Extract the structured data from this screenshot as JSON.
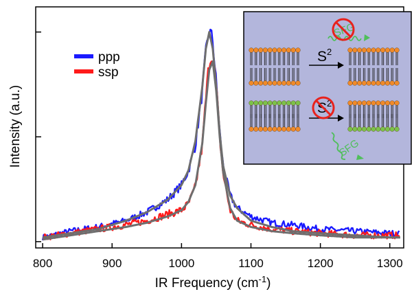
{
  "chart_data": {
    "type": "line",
    "title": "",
    "xlabel": "IR Frequency (cm",
    "xlabel_sup": "-1",
    "xlabel_close": ")",
    "ylabel": "Intensity (a.u.)",
    "xlim": [
      790,
      1320
    ],
    "ylim": [
      -0.03,
      1.12
    ],
    "x_ticks": [
      800,
      900,
      1000,
      1100,
      1200,
      1300
    ],
    "y_ticks_count": 3,
    "grid": false,
    "legend_position": "top-left",
    "series": [
      {
        "name": "ppp",
        "color": "#1a1aff",
        "x": [
          800,
          840,
          880,
          920,
          950,
          980,
          1000,
          1010,
          1020,
          1030,
          1035,
          1040,
          1045,
          1050,
          1055,
          1060,
          1070,
          1080,
          1100,
          1130,
          1160,
          1200,
          1250,
          1300,
          1315
        ],
        "y": [
          0.02,
          0.05,
          0.07,
          0.1,
          0.14,
          0.2,
          0.27,
          0.34,
          0.46,
          0.72,
          0.9,
          1.01,
          0.96,
          0.76,
          0.52,
          0.36,
          0.22,
          0.16,
          0.12,
          0.09,
          0.08,
          0.06,
          0.05,
          0.04,
          0.04
        ],
        "noise": 0.022
      },
      {
        "name": "ssp",
        "color": "#ff1a1a",
        "x": [
          800,
          840,
          880,
          920,
          950,
          980,
          1000,
          1010,
          1020,
          1030,
          1035,
          1040,
          1045,
          1050,
          1055,
          1060,
          1070,
          1080,
          1100,
          1130,
          1160,
          1200,
          1250,
          1300,
          1315
        ],
        "y": [
          0.02,
          0.04,
          0.06,
          0.08,
          0.1,
          0.13,
          0.15,
          0.18,
          0.26,
          0.46,
          0.68,
          0.86,
          0.9,
          0.74,
          0.5,
          0.32,
          0.15,
          0.1,
          0.08,
          0.06,
          0.05,
          0.04,
          0.03,
          0.03,
          0.03
        ],
        "noise": 0.025
      },
      {
        "name": "",
        "role": "fit",
        "color": "#6e6e6e",
        "x": [
          800,
          840,
          880,
          920,
          950,
          980,
          1000,
          1010,
          1020,
          1030,
          1035,
          1040,
          1045,
          1050,
          1055,
          1060,
          1070,
          1080,
          1100,
          1130,
          1160,
          1200,
          1250,
          1300,
          1315
        ],
        "y": [
          0.02,
          0.04,
          0.06,
          0.1,
          0.14,
          0.2,
          0.27,
          0.34,
          0.48,
          0.74,
          0.92,
          1.0,
          0.92,
          0.74,
          0.52,
          0.36,
          0.22,
          0.16,
          0.1,
          0.07,
          0.05,
          0.04,
          0.03,
          0.02,
          0.02
        ]
      },
      {
        "name": "",
        "role": "fit",
        "color": "#6e6e6e",
        "x": [
          800,
          840,
          880,
          920,
          950,
          980,
          1000,
          1010,
          1020,
          1030,
          1035,
          1040,
          1045,
          1050,
          1055,
          1060,
          1070,
          1080,
          1100,
          1130,
          1160,
          1200,
          1250,
          1300,
          1315
        ],
        "y": [
          0.01,
          0.03,
          0.05,
          0.07,
          0.09,
          0.12,
          0.15,
          0.19,
          0.27,
          0.47,
          0.66,
          0.82,
          0.86,
          0.72,
          0.5,
          0.33,
          0.16,
          0.1,
          0.07,
          0.05,
          0.04,
          0.03,
          0.02,
          0.02,
          0.02
        ]
      }
    ]
  },
  "inset": {
    "background": "#b3b6dc",
    "head_orange": "#f08a2a",
    "head_green": "#7cc24a",
    "sfg_green": "#4fbf5a",
    "prohibit_red": "#e8221c",
    "top_label": "S",
    "top_label_sup": "2",
    "bottom_label": "S",
    "bottom_label_sup": "2",
    "sfg_text_top": "SFG",
    "sfg_text_bottom": "SFG"
  }
}
